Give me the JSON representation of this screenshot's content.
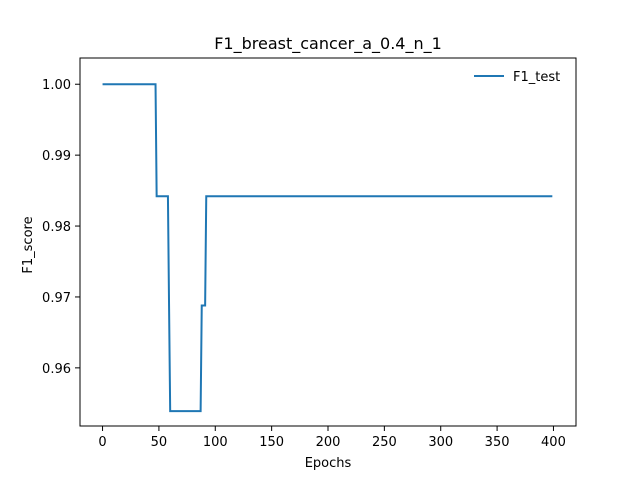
{
  "chart_data": {
    "type": "line",
    "title": "F1_breast_cancer_a_0.4_n_1",
    "xlabel": "Epochs",
    "ylabel": "F1_score",
    "xlim": [
      -20,
      420
    ],
    "ylim": [
      0.9518,
      1.0037
    ],
    "xticks": [
      0,
      50,
      100,
      150,
      200,
      250,
      300,
      350,
      400
    ],
    "yticks": [
      0.96,
      0.97,
      0.98,
      0.99,
      1.0
    ],
    "ytick_labels": [
      "0.96",
      "0.97",
      "0.98",
      "0.99",
      "1.00"
    ],
    "grid": false,
    "legend_position": "top-right",
    "series": [
      {
        "name": "F1_test",
        "color": "#1f77b4",
        "step_points": [
          [
            0,
            1.0
          ],
          [
            47,
            1.0
          ],
          [
            48,
            0.9842
          ],
          [
            58,
            0.9842
          ],
          [
            59,
            0.9688
          ],
          [
            60,
            0.9539
          ],
          [
            87,
            0.9539
          ],
          [
            88,
            0.9688
          ],
          [
            91,
            0.9688
          ],
          [
            92,
            0.9842
          ],
          [
            399,
            0.9842
          ]
        ]
      }
    ]
  }
}
